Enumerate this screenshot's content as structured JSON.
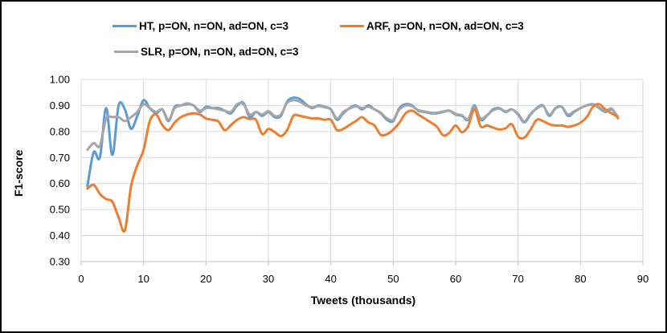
{
  "chart_data": {
    "type": "line",
    "title": "",
    "legend_position": "top",
    "grid": true,
    "grid_color": "#D9D9D9",
    "axis_line_color": "#BFBFBF",
    "x_axis": {
      "label": "Tweets (thousands)",
      "min": 0,
      "max": 90,
      "tick_step": 10,
      "tick_labels": [
        "0",
        "10",
        "20",
        "30",
        "40",
        "50",
        "60",
        "70",
        "80",
        "90"
      ]
    },
    "y_axis": {
      "label": "F1-score",
      "min": 0.3,
      "max": 1.0,
      "tick_step": 0.1,
      "tick_labels": [
        "0.30",
        "0.40",
        "0.50",
        "0.60",
        "0.70",
        "0.80",
        "0.90",
        "1.00"
      ]
    },
    "x_values": {
      "start": 1,
      "step": 1,
      "count": 86,
      "unit": "thousands of tweets"
    },
    "series": [
      {
        "name": "HT, p=ON, n=ON, ad=ON, c=3",
        "color": "#5B9BD5",
        "values": [
          0.59,
          0.72,
          0.7,
          0.89,
          0.71,
          0.9,
          0.885,
          0.81,
          0.86,
          0.92,
          0.89,
          0.87,
          0.885,
          0.84,
          0.895,
          0.9,
          0.905,
          0.9,
          0.875,
          0.895,
          0.89,
          0.89,
          0.88,
          0.87,
          0.9,
          0.91,
          0.855,
          0.875,
          0.86,
          0.875,
          0.855,
          0.86,
          0.915,
          0.93,
          0.925,
          0.905,
          0.89,
          0.9,
          0.895,
          0.885,
          0.845,
          0.87,
          0.89,
          0.9,
          0.885,
          0.9,
          0.885,
          0.87,
          0.845,
          0.84,
          0.89,
          0.905,
          0.9,
          0.88,
          0.875,
          0.87,
          0.87,
          0.875,
          0.88,
          0.865,
          0.86,
          0.845,
          0.9,
          0.845,
          0.86,
          0.885,
          0.89,
          0.875,
          0.885,
          0.865,
          0.835,
          0.865,
          0.89,
          0.9,
          0.86,
          0.89,
          0.895,
          0.86,
          0.875,
          0.89,
          0.9,
          0.905,
          0.89,
          0.875,
          0.885,
          0.855
        ]
      },
      {
        "name": "ARF, p=ON, n=ON, ad=ON, c=3",
        "color": "#ED7D31",
        "values": [
          0.58,
          0.595,
          0.56,
          0.54,
          0.53,
          0.47,
          0.42,
          0.59,
          0.67,
          0.73,
          0.84,
          0.865,
          0.825,
          0.805,
          0.835,
          0.855,
          0.865,
          0.87,
          0.865,
          0.85,
          0.845,
          0.838,
          0.805,
          0.825,
          0.845,
          0.855,
          0.848,
          0.845,
          0.79,
          0.81,
          0.798,
          0.782,
          0.805,
          0.86,
          0.86,
          0.855,
          0.85,
          0.85,
          0.845,
          0.845,
          0.805,
          0.81,
          0.825,
          0.84,
          0.855,
          0.835,
          0.823,
          0.787,
          0.79,
          0.807,
          0.834,
          0.87,
          0.88,
          0.865,
          0.85,
          0.835,
          0.818,
          0.785,
          0.795,
          0.823,
          0.797,
          0.82,
          0.885,
          0.82,
          0.823,
          0.815,
          0.808,
          0.812,
          0.828,
          0.78,
          0.776,
          0.807,
          0.845,
          0.84,
          0.828,
          0.823,
          0.823,
          0.818,
          0.823,
          0.834,
          0.855,
          0.895,
          0.905,
          0.885,
          0.87,
          0.855
        ]
      },
      {
        "name": "SLR, p=ON, n=ON, ad=ON, c=3",
        "color": "#A5A5A5",
        "values": [
          0.73,
          0.755,
          0.745,
          0.85,
          0.855,
          0.855,
          0.84,
          0.855,
          0.875,
          0.905,
          0.89,
          0.875,
          0.885,
          0.845,
          0.89,
          0.9,
          0.908,
          0.9,
          0.88,
          0.89,
          0.89,
          0.885,
          0.88,
          0.875,
          0.905,
          0.905,
          0.865,
          0.875,
          0.865,
          0.878,
          0.86,
          0.865,
          0.91,
          0.92,
          0.915,
          0.9,
          0.893,
          0.898,
          0.893,
          0.885,
          0.85,
          0.875,
          0.888,
          0.897,
          0.89,
          0.895,
          0.885,
          0.872,
          0.85,
          0.845,
          0.885,
          0.9,
          0.897,
          0.882,
          0.877,
          0.872,
          0.872,
          0.877,
          0.88,
          0.868,
          0.862,
          0.848,
          0.895,
          0.85,
          0.862,
          0.882,
          0.887,
          0.878,
          0.885,
          0.868,
          0.838,
          0.868,
          0.888,
          0.898,
          0.865,
          0.888,
          0.895,
          0.865,
          0.878,
          0.89,
          0.9,
          0.903,
          0.893,
          0.878,
          0.888,
          0.85
        ]
      }
    ],
    "draw_order": [
      0,
      2,
      1
    ]
  }
}
